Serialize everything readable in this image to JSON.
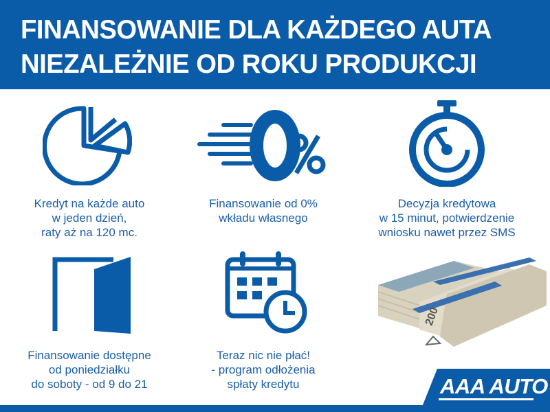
{
  "header": {
    "line1": "FINANSOWANIE DLA KAŻDEGO AUTA",
    "line2": "NIEZALEŻNIE OD ROKU PRODUKCJI"
  },
  "features": [
    {
      "icon": "pie-chart-icon",
      "lines": [
        "Kredyt na każde auto",
        "w jeden dzień,",
        "raty aż na 120 mc."
      ]
    },
    {
      "icon": "zero-percent-icon",
      "lines": [
        "Finansowanie od 0%",
        "wkładu własnego"
      ]
    },
    {
      "icon": "stopwatch-icon",
      "lines": [
        "Decyzja kredytowa",
        "w 15 minut, potwierdzenie",
        "wniosku nawet przez SMS"
      ]
    },
    {
      "icon": "open-door-icon",
      "lines": [
        "Finansowanie dostępne",
        "od poniedziałku",
        "do soboty - od 9 do 21"
      ]
    },
    {
      "icon": "calendar-clock-icon",
      "lines": [
        "Teraz nic nie płać!",
        "- program odłożenia",
        "spłaty kredytu"
      ]
    },
    {
      "icon": "banknote-stack-image"
    }
  ],
  "logo": {
    "text": "AAA AUTO"
  },
  "colors": {
    "brand_blue": "#0b5ca8",
    "text_blue": "#1b5ea8"
  }
}
